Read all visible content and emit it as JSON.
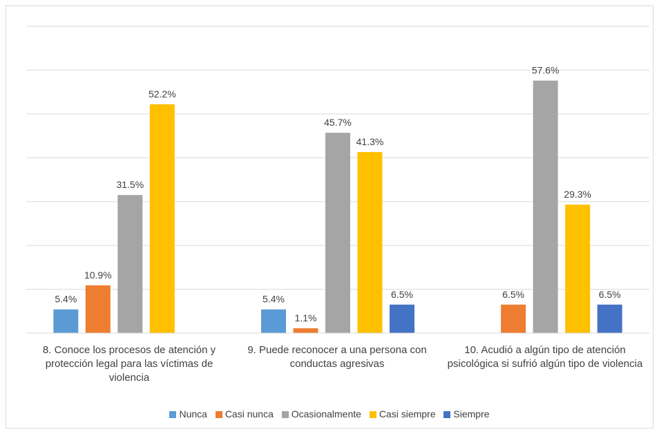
{
  "chart_data": {
    "type": "bar",
    "categories": [
      "8. Conoce los procesos de atención y protección legal para las víctimas de violencia",
      "9. Puede reconocer a una persona con conductas agresivas",
      "10. Acudió a algún tipo de atención psicológica si sufrió algún tipo de violencia"
    ],
    "series": [
      {
        "name": "Nunca",
        "color": "#5b9bd5",
        "values": [
          5.4,
          5.4,
          null
        ],
        "labels": [
          "5.4%",
          "5.4%",
          ""
        ]
      },
      {
        "name": "Casi nunca",
        "color": "#ed7d31",
        "values": [
          10.9,
          1.1,
          6.5
        ],
        "labels": [
          "10.9%",
          "1.1%",
          "6.5%"
        ]
      },
      {
        "name": "Ocasionalmente",
        "color": "#a5a5a5",
        "values": [
          31.5,
          45.7,
          57.6
        ],
        "labels": [
          "31.5%",
          "45.7%",
          "57.6%"
        ]
      },
      {
        "name": "Casi siempre",
        "color": "#ffc000",
        "values": [
          52.2,
          41.3,
          29.3
        ],
        "labels": [
          "52.2%",
          "41.3%",
          "29.3%"
        ]
      },
      {
        "name": "Siempre",
        "color": "#4472c4",
        "values": [
          null,
          6.5,
          6.5
        ],
        "labels": [
          "",
          "6.5%",
          "6.5%"
        ]
      }
    ],
    "ylim": [
      0,
      70
    ],
    "grid": true,
    "legend_position": "bottom"
  }
}
